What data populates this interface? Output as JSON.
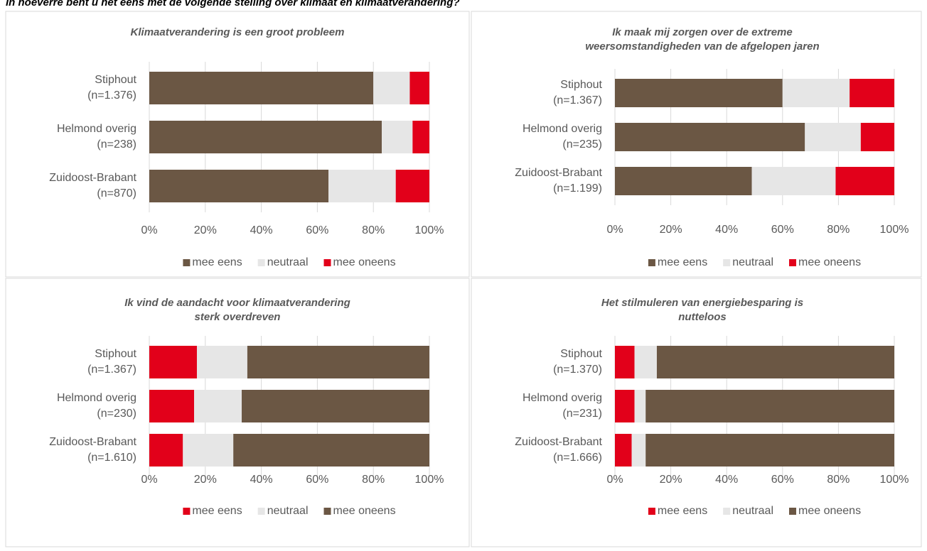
{
  "title": "In hoeverre bent u het eens met de volgende stelling over klimaat en klimaatverandering?",
  "chart_data": [
    {
      "type": "bar",
      "orientation": "horizontal",
      "stacked": true,
      "title": [
        "Klimaatverandering is een groot probleem"
      ],
      "categories": [
        [
          "Stiphout",
          "(n=1.376)"
        ],
        [
          "Helmond overig",
          "(n=238)"
        ],
        [
          "Zuidoost-Brabant",
          "(n=870)"
        ]
      ],
      "series": [
        {
          "name": "mee eens",
          "color": "#6b5744",
          "values": [
            80,
            83,
            64
          ]
        },
        {
          "name": "neutraal",
          "color": "#e6e6e6",
          "values": [
            13,
            11,
            24
          ]
        },
        {
          "name": "mee oneens",
          "color": "#e2001a",
          "values": [
            7,
            6,
            12
          ]
        }
      ],
      "xlim": [
        0,
        100
      ],
      "xticks": [
        {
          "value": 0,
          "label": "0%"
        },
        {
          "value": 20,
          "label": "20%"
        },
        {
          "value": 40,
          "label": "40%"
        },
        {
          "value": 60,
          "label": "60%"
        },
        {
          "value": 80,
          "label": "80%"
        },
        {
          "value": 100,
          "label": "100%"
        }
      ],
      "legend": "bottom"
    },
    {
      "type": "bar",
      "orientation": "horizontal",
      "stacked": true,
      "title": [
        "Ik maak mij zorgen over de extreme",
        "weersomstandigheden van de afgelopen jaren"
      ],
      "categories": [
        [
          "Stiphout",
          "(n=1.367)"
        ],
        [
          "Helmond overig",
          "(n=235)"
        ],
        [
          "Zuidoost-Brabant",
          "(n=1.199)"
        ]
      ],
      "series": [
        {
          "name": "mee eens",
          "color": "#6b5744",
          "values": [
            60,
            68,
            49
          ]
        },
        {
          "name": "neutraal",
          "color": "#e6e6e6",
          "values": [
            24,
            20,
            30
          ]
        },
        {
          "name": "mee oneens",
          "color": "#e2001a",
          "values": [
            16,
            12,
            21
          ]
        }
      ],
      "xlim": [
        0,
        100
      ],
      "xticks": [
        {
          "value": 0,
          "label": "0%"
        },
        {
          "value": 20,
          "label": "20%"
        },
        {
          "value": 40,
          "label": "40%"
        },
        {
          "value": 60,
          "label": "60%"
        },
        {
          "value": 80,
          "label": "80%"
        },
        {
          "value": 100,
          "label": "100%"
        }
      ],
      "legend": "bottom"
    },
    {
      "type": "bar",
      "orientation": "horizontal",
      "stacked": true,
      "title": [
        "Ik vind de aandacht voor klimaatverandering",
        "sterk overdreven"
      ],
      "categories": [
        [
          "Stiphout",
          "(n=1.367)"
        ],
        [
          "Helmond overig",
          "(n=230)"
        ],
        [
          "Zuidoost-Brabant",
          "(n=1.610)"
        ]
      ],
      "series": [
        {
          "name": "mee eens",
          "color": "#e2001a",
          "values": [
            17,
            16,
            12
          ]
        },
        {
          "name": "neutraal",
          "color": "#e6e6e6",
          "values": [
            18,
            17,
            18
          ]
        },
        {
          "name": "mee oneens",
          "color": "#6b5744",
          "values": [
            65,
            67,
            70
          ]
        }
      ],
      "xlim": [
        0,
        100
      ],
      "xticks": [
        {
          "value": 0,
          "label": "0%"
        },
        {
          "value": 20,
          "label": "20%"
        },
        {
          "value": 40,
          "label": "40%"
        },
        {
          "value": 60,
          "label": "60%"
        },
        {
          "value": 80,
          "label": "80%"
        },
        {
          "value": 100,
          "label": "100%"
        }
      ],
      "legend": "bottom"
    },
    {
      "type": "bar",
      "orientation": "horizontal",
      "stacked": true,
      "title": [
        "Het stilmuleren van energiebesparing is",
        "nutteloos"
      ],
      "categories": [
        [
          "Stiphout",
          "(n=1.370)"
        ],
        [
          "Helmond overig",
          "(n=231)"
        ],
        [
          "Zuidoost-Brabant",
          "(n=1.666)"
        ]
      ],
      "series": [
        {
          "name": "mee eens",
          "color": "#e2001a",
          "values": [
            7,
            7,
            6
          ]
        },
        {
          "name": "neutraal",
          "color": "#e6e6e6",
          "values": [
            8,
            4,
            5
          ]
        },
        {
          "name": "mee oneens",
          "color": "#6b5744",
          "values": [
            85,
            89,
            89
          ]
        }
      ],
      "xlim": [
        0,
        100
      ],
      "xticks": [
        {
          "value": 0,
          "label": "0%"
        },
        {
          "value": 20,
          "label": "20%"
        },
        {
          "value": 40,
          "label": "40%"
        },
        {
          "value": 60,
          "label": "60%"
        },
        {
          "value": 80,
          "label": "80%"
        },
        {
          "value": 100,
          "label": "100%"
        }
      ],
      "legend": "bottom"
    }
  ]
}
